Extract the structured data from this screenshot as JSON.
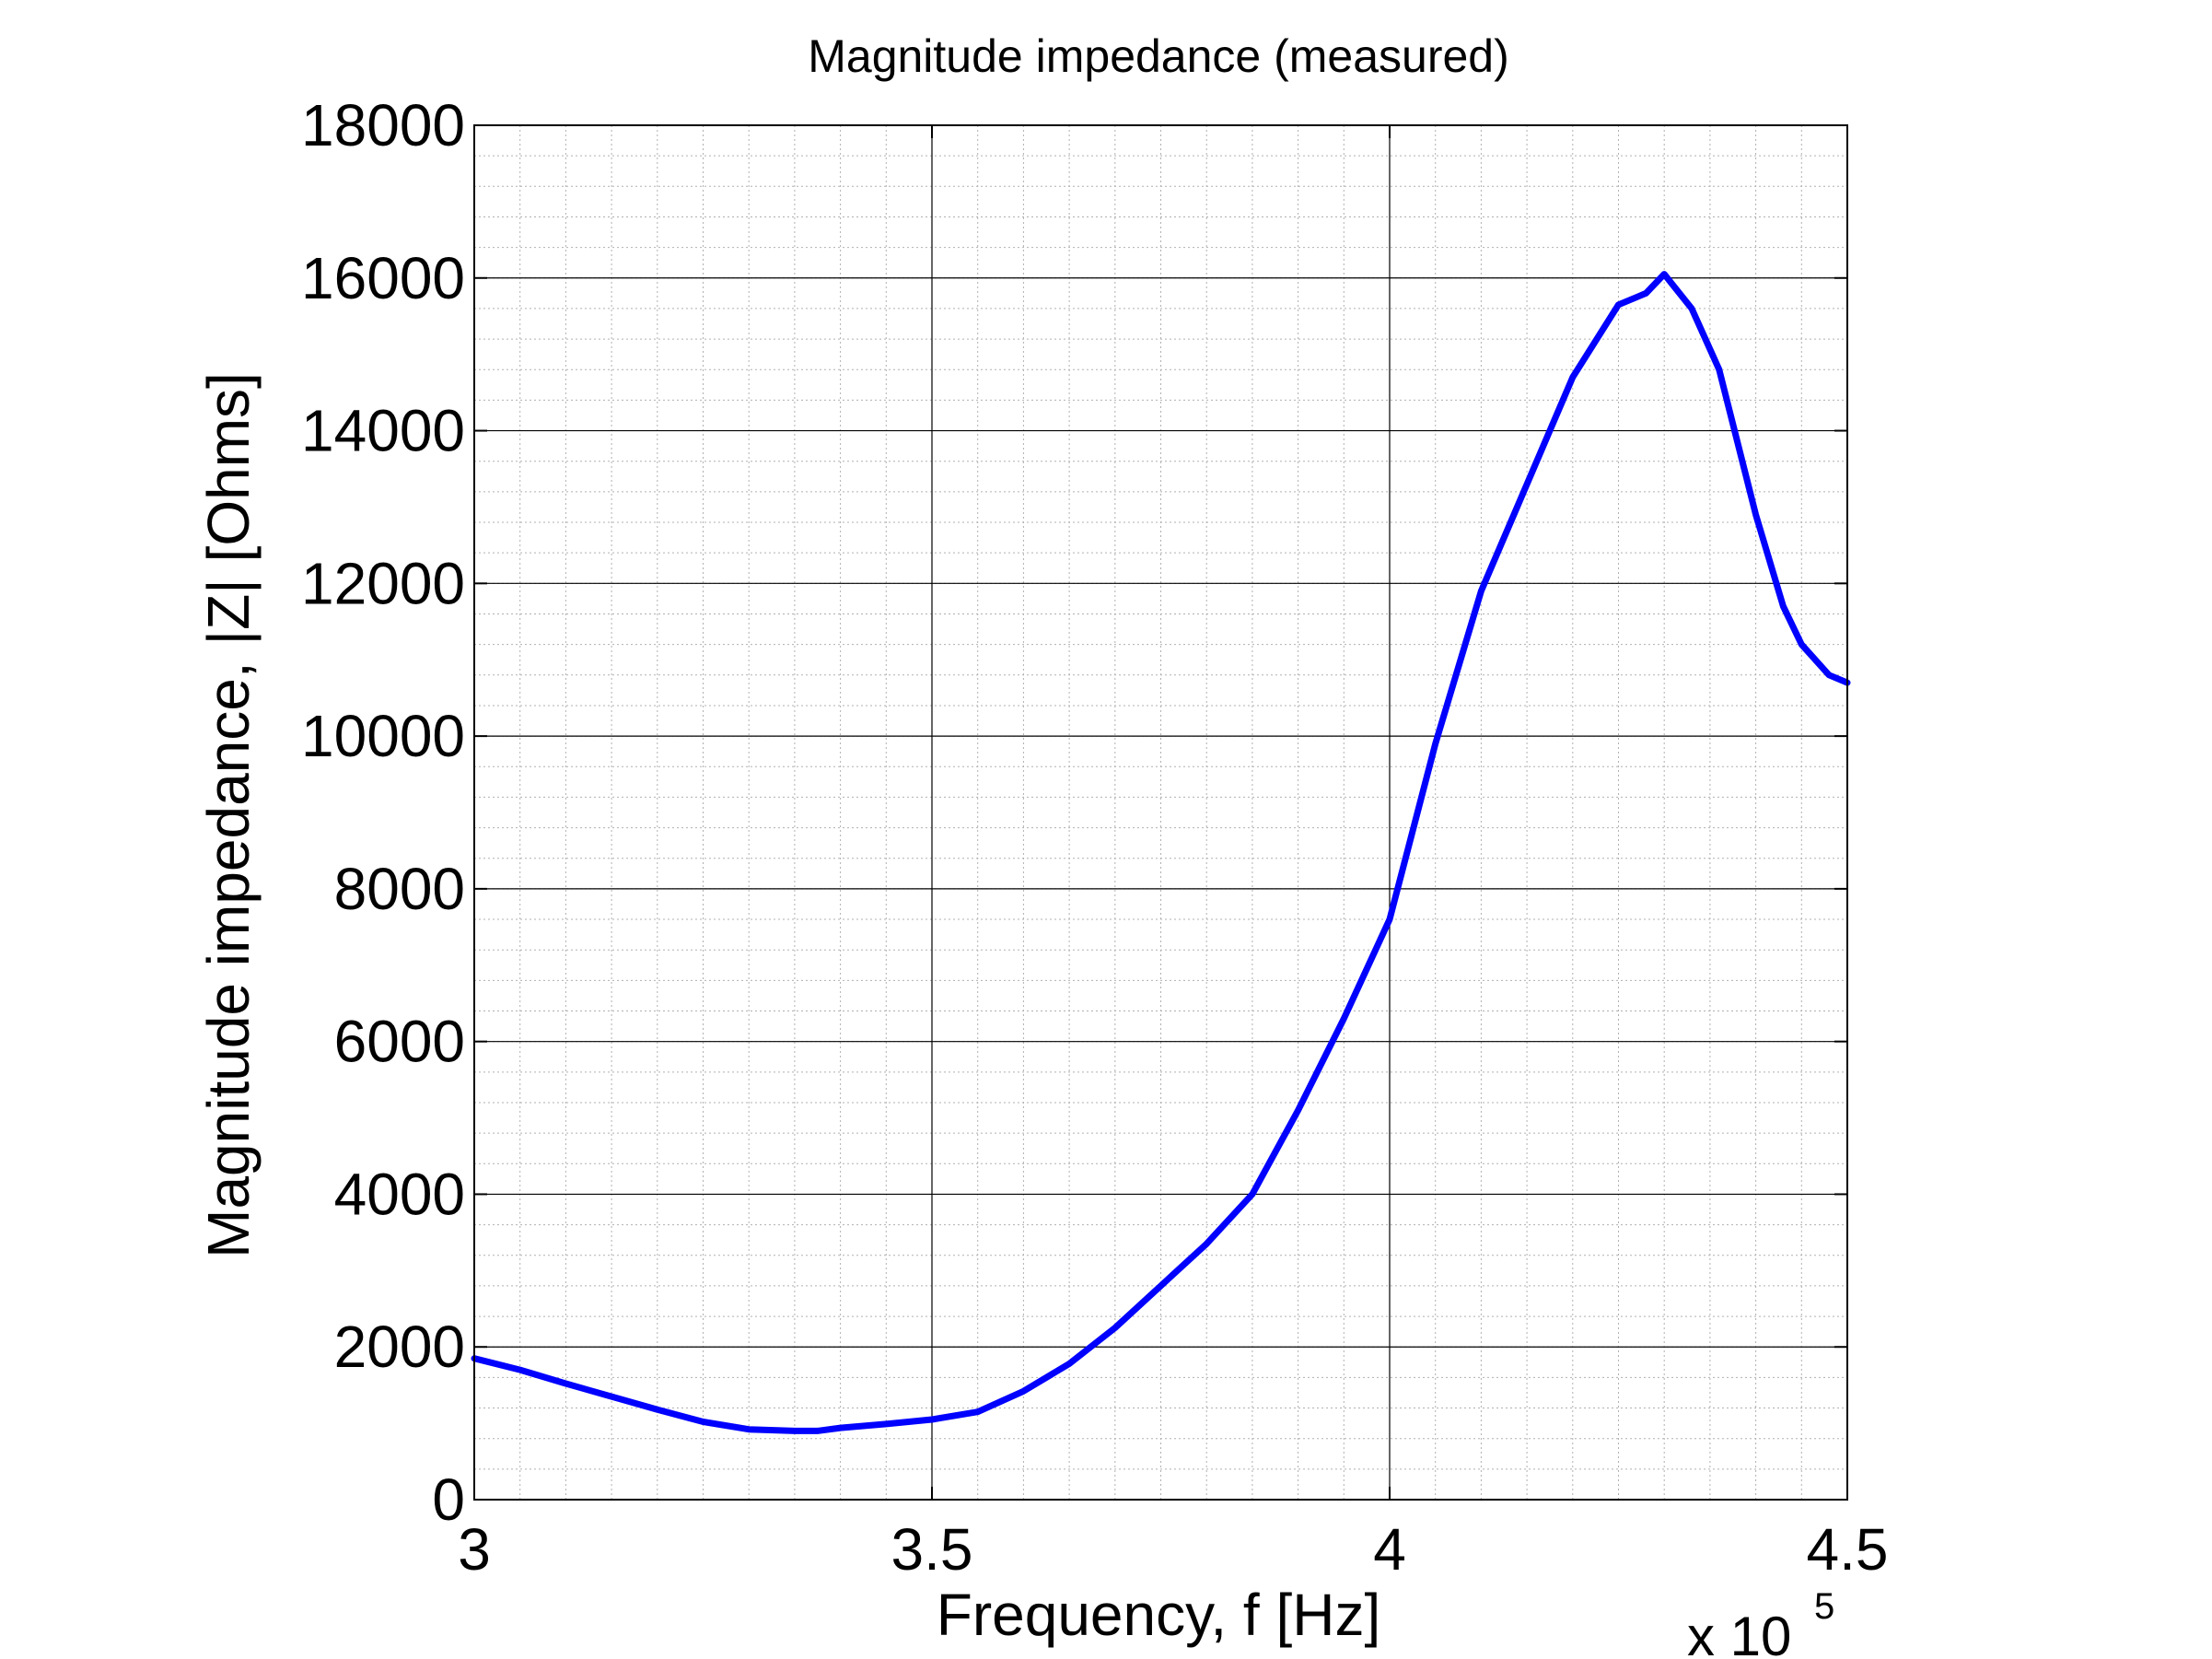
{
  "chart_data": {
    "type": "line",
    "title": "Magnitude impedance (measured)",
    "xlabel": "Frequency, f [Hz]",
    "ylabel": "Magnitude impedance, |Z| [Ohms]",
    "x_multiplier": {
      "base": "x 10",
      "exponent": "5"
    },
    "xlim": [
      3,
      4.5
    ],
    "ylim": [
      0,
      18000
    ],
    "xticks": [
      3,
      3.5,
      4,
      4.5
    ],
    "xtick_labels": [
      "3",
      "3.5",
      "4",
      "4.5"
    ],
    "yticks": [
      0,
      2000,
      4000,
      6000,
      8000,
      10000,
      12000,
      14000,
      16000,
      18000
    ],
    "ytick_labels": [
      "0",
      "2000",
      "4000",
      "6000",
      "8000",
      "10000",
      "12000",
      "14000",
      "16000",
      "18000"
    ],
    "grid": true,
    "minor_grid": true,
    "legend": "none",
    "series": [
      {
        "color": "#0000ff",
        "x": [
          3.0,
          3.05,
          3.1,
          3.15,
          3.2,
          3.25,
          3.3,
          3.35,
          3.375,
          3.4,
          3.45,
          3.5,
          3.55,
          3.6,
          3.65,
          3.7,
          3.75,
          3.8,
          3.85,
          3.9,
          3.95,
          4.0,
          4.05,
          4.1,
          4.15,
          4.2,
          4.25,
          4.28,
          4.3,
          4.31,
          4.33,
          4.36,
          4.4,
          4.43,
          4.45,
          4.48,
          4.5
        ],
        "y": [
          1850,
          1700,
          1520,
          1350,
          1180,
          1020,
          920,
          900,
          900,
          940,
          990,
          1050,
          1150,
          1420,
          1780,
          2250,
          2800,
          3350,
          4000,
          5100,
          6300,
          7600,
          9900,
          11900,
          13300,
          14700,
          15650,
          15800,
          16050,
          15900,
          15600,
          14800,
          12900,
          11700,
          11200,
          10800,
          10700
        ]
      }
    ]
  },
  "colors": {
    "line": "#0000ff",
    "major_grid": "#000000",
    "minor_grid": "#b0b0b0",
    "axes": "#000000",
    "background": "#ffffff"
  }
}
